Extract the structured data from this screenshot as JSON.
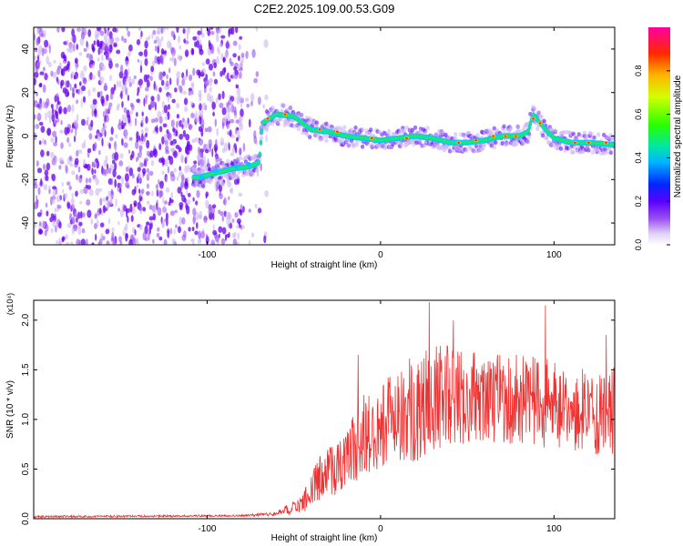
{
  "figure_title": "C2E2.2025.109.00.53.G09",
  "chart_data": [
    {
      "type": "heatmap",
      "title": "C2E2.2025.109.00.53.G09",
      "xlabel": "Height of straight line (km)",
      "ylabel": "Frequency (Hz)",
      "xlim": [
        -200,
        135
      ],
      "ylim": [
        -50,
        50
      ],
      "xticks": [
        -100,
        0,
        100
      ],
      "yticks": [
        -40,
        -20,
        0,
        20,
        40
      ],
      "xtick_labels": [
        "-100",
        "0",
        "100"
      ],
      "ytick_labels": [
        "-40",
        "-20",
        "0",
        "20",
        "40"
      ],
      "colorbar": {
        "label": "Normalized spectral amplitude",
        "range": [
          0.0,
          1.0
        ],
        "ticks": [
          0.0,
          0.2,
          0.4,
          0.6,
          0.8
        ],
        "tick_labels": [
          "0.0",
          "0.2",
          "0.4",
          "0.6",
          "0.8"
        ]
      },
      "ridge": {
        "x": [
          -105,
          -95,
          -85,
          -75,
          -70,
          -68,
          -60,
          -50,
          -40,
          -30,
          -20,
          -10,
          0,
          10,
          20,
          30,
          40,
          50,
          60,
          70,
          80,
          85,
          88,
          92,
          95,
          100,
          110,
          120,
          135
        ],
        "y": [
          -19,
          -17,
          -15,
          -14,
          -12,
          6,
          10,
          9,
          3,
          2,
          0,
          -1,
          -2,
          -1,
          0,
          -1,
          -3,
          -3,
          -2,
          0,
          0,
          2,
          10,
          6,
          3,
          -1,
          -3,
          -3,
          -4
        ]
      }
    },
    {
      "type": "line",
      "title": "",
      "xlabel": "Height of straight line (km)",
      "ylabel": "SNR (10 * v/v)",
      "y_multiplier": "(x10⁴)",
      "xlim": [
        -200,
        135
      ],
      "ylim": [
        0,
        2.2
      ],
      "xticks": [
        -100,
        0,
        100
      ],
      "yticks": [
        0.0,
        0.5,
        1.0,
        1.5,
        2.0
      ],
      "xtick_labels": [
        "-100",
        "0",
        "100"
      ],
      "ytick_labels": [
        "0.0",
        "0.5",
        "1.0",
        "1.5",
        "2.0"
      ],
      "series": [
        {
          "name": "SNR",
          "color": "#ee3333",
          "envelope_x": [
            -200,
            -80,
            -60,
            -45,
            -35,
            -25,
            -15,
            -10,
            0,
            10,
            20,
            30,
            40,
            60,
            80,
            100,
            120,
            135
          ],
          "envelope_mean": [
            0.02,
            0.03,
            0.05,
            0.15,
            0.4,
            0.5,
            0.7,
            0.85,
            0.95,
            1.05,
            1.1,
            1.2,
            1.25,
            1.2,
            1.2,
            1.15,
            1.1,
            1.1
          ],
          "envelope_amplitude": [
            0.01,
            0.01,
            0.02,
            0.1,
            0.25,
            0.3,
            0.35,
            0.4,
            0.45,
            0.5,
            0.55,
            0.55,
            0.5,
            0.45,
            0.45,
            0.45,
            0.45,
            0.45
          ],
          "peaks": [
            {
              "x": -13,
              "y": 1.65
            },
            {
              "x": 28,
              "y": 2.18
            },
            {
              "x": 42,
              "y": 2.0
            },
            {
              "x": 95,
              "y": 2.15
            },
            {
              "x": 130,
              "y": 1.85
            }
          ]
        }
      ]
    }
  ]
}
